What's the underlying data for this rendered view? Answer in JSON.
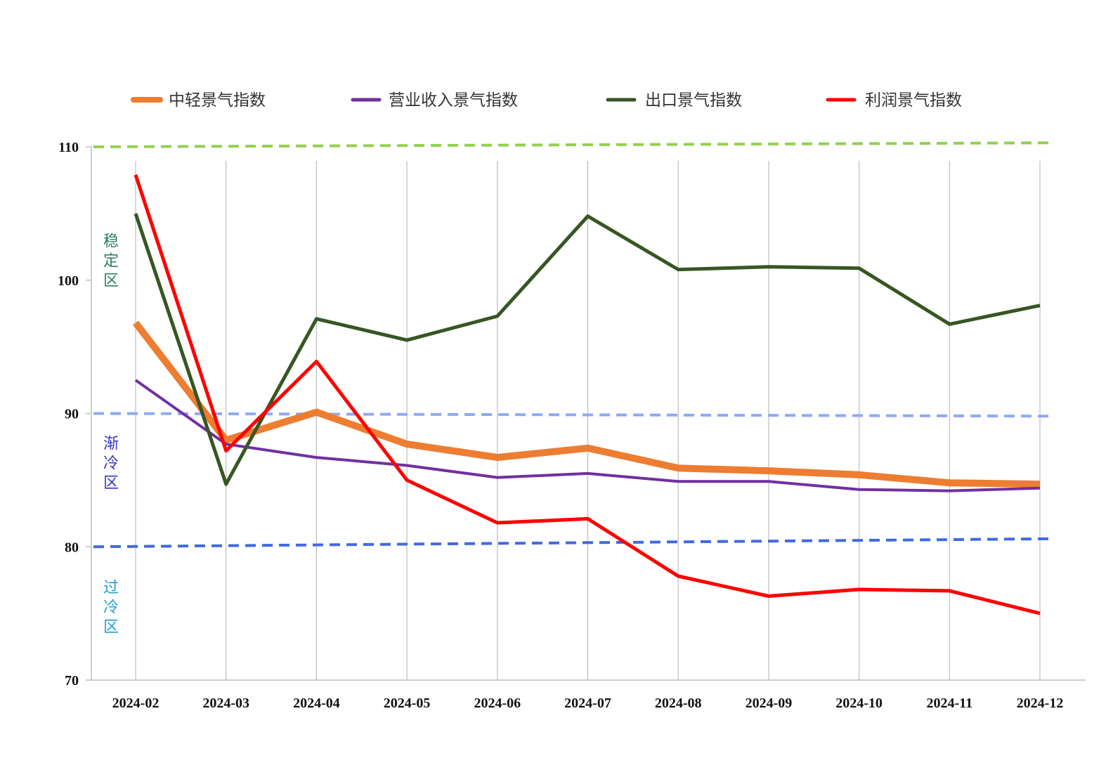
{
  "chart_data": {
    "type": "line",
    "categories": [
      "2024-02",
      "2024-03",
      "2024-04",
      "2024-05",
      "2024-06",
      "2024-07",
      "2024-08",
      "2024-09",
      "2024-10",
      "2024-11",
      "2024-12"
    ],
    "ylim": [
      70,
      110
    ],
    "yticks": [
      70,
      80,
      90,
      100,
      110
    ],
    "grid": "vertical lines at categories",
    "legend": "top",
    "series": [
      {
        "name": "中轻景气指数",
        "color": "#ED7D31",
        "width": 10,
        "values": [
          96.8,
          88.0,
          90.1,
          87.7,
          86.7,
          87.4,
          85.9,
          85.7,
          85.4,
          84.8,
          84.7
        ]
      },
      {
        "name": "营业收入景气指数",
        "color": "#7030A0",
        "width": 4,
        "values": [
          92.5,
          87.7,
          86.7,
          86.1,
          85.2,
          85.5,
          84.9,
          84.9,
          84.3,
          84.2,
          84.4
        ]
      },
      {
        "name": "出口景气指数",
        "color": "#375623",
        "width": 5,
        "values": [
          105.0,
          84.7,
          97.1,
          95.5,
          97.3,
          104.8,
          100.8,
          101.0,
          100.9,
          96.7,
          98.1
        ]
      },
      {
        "name": "利润景气指数",
        "color": "#FF0000",
        "width": 5,
        "values": [
          107.9,
          87.2,
          93.9,
          85.0,
          81.8,
          82.1,
          77.8,
          76.3,
          76.8,
          76.7,
          75.0
        ]
      }
    ],
    "reference_lines": [
      {
        "value_start": 110.0,
        "value_end": 110.3,
        "color": "#92D050"
      },
      {
        "value_start": 90.0,
        "value_end": 89.8,
        "color": "#8EA9F7"
      },
      {
        "value_start": 80.0,
        "value_end": 80.6,
        "color": "#4169E1"
      }
    ],
    "zones": [
      {
        "label": "稳定区",
        "color": "#2E7D6B",
        "anchor_value": 101.5
      },
      {
        "label": "渐冷区",
        "color": "#3333CC",
        "anchor_value": 86.3
      },
      {
        "label": "过冷区",
        "color": "#1E9FD6",
        "anchor_value": 75.5
      }
    ]
  }
}
